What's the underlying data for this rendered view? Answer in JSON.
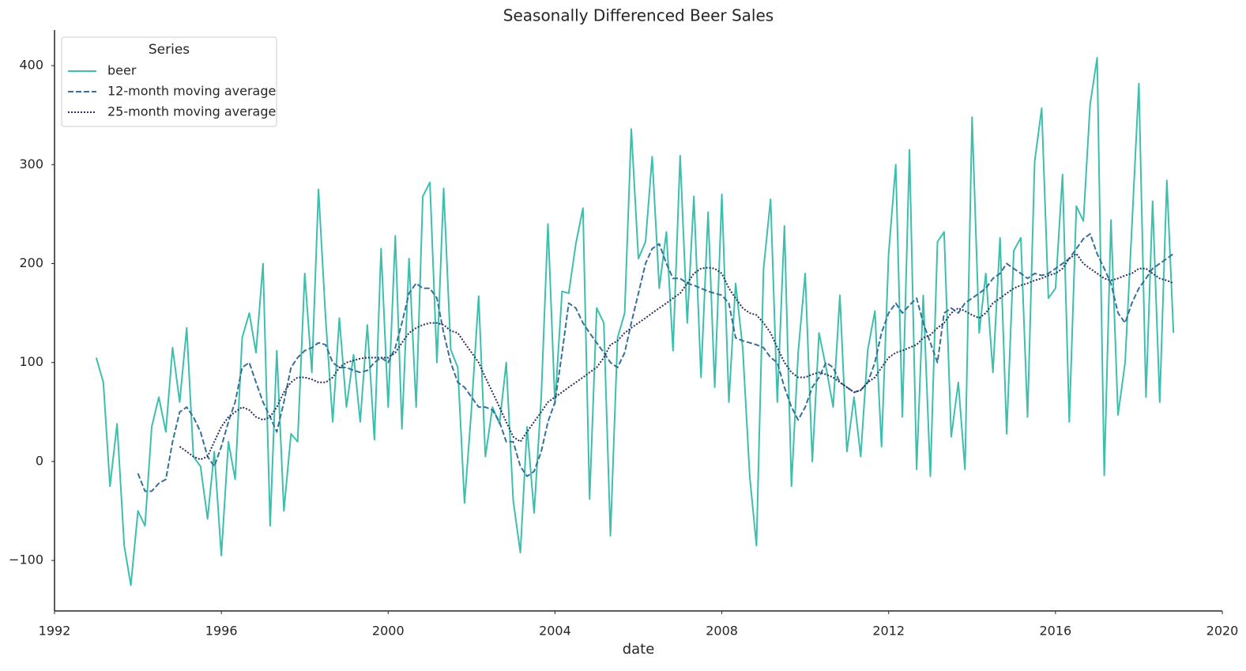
{
  "chart_data": {
    "type": "line",
    "title": "Seasonally Differenced Beer Sales",
    "xlabel": "date",
    "legend_title": "Series",
    "legend": "upper left",
    "grid": false,
    "xlim": [
      1992,
      2020
    ],
    "xticks": [
      1992,
      1996,
      2000,
      2004,
      2008,
      2012,
      2016,
      2020
    ],
    "ylim": [
      -151,
      436
    ],
    "yticks": [
      {
        "value": -100,
        "label": "−100"
      },
      0,
      100,
      200,
      300,
      400
    ],
    "x": [
      1993,
      1993.17,
      1993.33,
      1993.5,
      1993.67,
      1993.83,
      1994,
      1994.17,
      1994.33,
      1994.5,
      1994.67,
      1994.83,
      1995,
      1995.17,
      1995.33,
      1995.5,
      1995.67,
      1995.83,
      1996,
      1996.17,
      1996.33,
      1996.5,
      1996.67,
      1996.83,
      1997,
      1997.17,
      1997.33,
      1997.5,
      1997.67,
      1997.83,
      1998,
      1998.17,
      1998.33,
      1998.5,
      1998.67,
      1998.83,
      1999,
      1999.17,
      1999.33,
      1999.5,
      1999.67,
      1999.83,
      2000,
      2000.17,
      2000.33,
      2000.5,
      2000.67,
      2000.83,
      2001,
      2001.17,
      2001.33,
      2001.5,
      2001.67,
      2001.83,
      2002,
      2002.17,
      2002.33,
      2002.5,
      2002.67,
      2002.83,
      2003,
      2003.17,
      2003.33,
      2003.5,
      2003.67,
      2003.83,
      2004,
      2004.17,
      2004.33,
      2004.5,
      2004.67,
      2004.83,
      2005,
      2005.17,
      2005.33,
      2005.5,
      2005.67,
      2005.83,
      2006,
      2006.17,
      2006.33,
      2006.5,
      2006.67,
      2006.83,
      2007,
      2007.17,
      2007.33,
      2007.5,
      2007.67,
      2007.83,
      2008,
      2008.17,
      2008.33,
      2008.5,
      2008.67,
      2008.83,
      2009,
      2009.17,
      2009.33,
      2009.5,
      2009.67,
      2009.83,
      2010,
      2010.17,
      2010.33,
      2010.5,
      2010.67,
      2010.83,
      2011,
      2011.17,
      2011.33,
      2011.5,
      2011.67,
      2011.83,
      2012,
      2012.17,
      2012.33,
      2012.5,
      2012.67,
      2012.83,
      2013,
      2013.17,
      2013.33,
      2013.5,
      2013.67,
      2013.83,
      2014,
      2014.17,
      2014.33,
      2014.5,
      2014.67,
      2014.83,
      2015,
      2015.17,
      2015.33,
      2015.5,
      2015.67,
      2015.83,
      2016,
      2016.17,
      2016.33,
      2016.5,
      2016.67,
      2016.83,
      2017,
      2017.17,
      2017.33,
      2017.5,
      2017.67,
      2017.83,
      2018,
      2018.17,
      2018.33,
      2018.5,
      2018.67,
      2018.83
    ],
    "series": [
      {
        "name": "beer",
        "color": "#3dbfae",
        "linestyle": "solid",
        "values": [
          105,
          80,
          -25,
          38,
          -85,
          -125,
          -50,
          -65,
          35,
          65,
          30,
          115,
          60,
          135,
          5,
          -5,
          -58,
          10,
          -95,
          20,
          -18,
          125,
          150,
          110,
          200,
          -65,
          112,
          -50,
          28,
          20,
          190,
          90,
          275,
          145,
          40,
          145,
          55,
          108,
          40,
          138,
          22,
          215,
          55,
          228,
          33,
          205,
          55,
          268,
          282,
          100,
          276,
          113,
          95,
          -42,
          55,
          167,
          5,
          55,
          38,
          100,
          -40,
          -92,
          35,
          -52,
          65,
          240,
          58,
          172,
          170,
          220,
          256,
          -38,
          155,
          140,
          -75,
          125,
          150,
          336,
          205,
          222,
          308,
          175,
          232,
          112,
          309,
          140,
          268,
          85,
          252,
          75,
          270,
          60,
          180,
          115,
          -15,
          -85,
          195,
          265,
          60,
          238,
          -25,
          110,
          190,
          0,
          130,
          95,
          55,
          168,
          10,
          65,
          5,
          113,
          152,
          15,
          210,
          300,
          45,
          315,
          -8,
          168,
          -15,
          222,
          232,
          25,
          80,
          -8,
          348,
          130,
          190,
          90,
          226,
          28,
          213,
          226,
          45,
          303,
          357,
          165,
          175,
          290,
          40,
          258,
          243,
          361,
          408,
          -14,
          244,
          47,
          100,
          236,
          382,
          65,
          263,
          60,
          284,
          130
        ]
      },
      {
        "name": "12-month moving average",
        "color": "#35709a",
        "linestyle": "dashed",
        "values": [
          null,
          null,
          null,
          null,
          null,
          null,
          -12,
          -30,
          -30,
          -22,
          -18,
          20,
          50,
          55,
          45,
          30,
          5,
          -5,
          15,
          40,
          60,
          95,
          100,
          80,
          60,
          45,
          30,
          60,
          95,
          105,
          112,
          115,
          120,
          118,
          100,
          95,
          95,
          92,
          90,
          92,
          100,
          105,
          100,
          115,
          140,
          170,
          180,
          175,
          175,
          165,
          130,
          100,
          80,
          75,
          65,
          55,
          55,
          52,
          40,
          20,
          20,
          -5,
          -15,
          -10,
          10,
          40,
          60,
          110,
          160,
          155,
          140,
          130,
          120,
          110,
          100,
          95,
          110,
          140,
          170,
          200,
          215,
          220,
          200,
          185,
          185,
          180,
          178,
          175,
          172,
          170,
          168,
          160,
          125,
          122,
          120,
          118,
          115,
          105,
          100,
          75,
          55,
          42,
          55,
          75,
          85,
          100,
          95,
          80,
          75,
          70,
          72,
          80,
          100,
          130,
          150,
          160,
          150,
          158,
          165,
          140,
          120,
          100,
          150,
          155,
          150,
          160,
          165,
          170,
          175,
          185,
          190,
          200,
          195,
          190,
          185,
          190,
          188,
          190,
          195,
          200,
          205,
          215,
          225,
          230,
          210,
          195,
          180,
          150,
          140,
          160,
          175,
          185,
          195,
          200,
          205,
          210
        ]
      },
      {
        "name": "25-month moving average",
        "color": "#2c2d5c",
        "linestyle": "dotted",
        "values": [
          null,
          null,
          null,
          null,
          null,
          null,
          null,
          null,
          null,
          null,
          null,
          null,
          15,
          10,
          5,
          2,
          5,
          20,
          35,
          45,
          50,
          55,
          52,
          45,
          42,
          45,
          55,
          70,
          80,
          85,
          85,
          83,
          80,
          80,
          85,
          95,
          100,
          102,
          104,
          105,
          105,
          105,
          105,
          110,
          120,
          130,
          135,
          138,
          140,
          140,
          138,
          132,
          130,
          120,
          110,
          100,
          85,
          70,
          55,
          40,
          25,
          20,
          30,
          40,
          50,
          60,
          65,
          70,
          75,
          80,
          85,
          90,
          95,
          105,
          118,
          122,
          130,
          135,
          140,
          145,
          150,
          155,
          160,
          165,
          170,
          180,
          190,
          195,
          196,
          195,
          190,
          175,
          165,
          155,
          150,
          148,
          140,
          130,
          115,
          100,
          90,
          85,
          85,
          88,
          90,
          88,
          85,
          80,
          75,
          70,
          72,
          80,
          85,
          95,
          105,
          110,
          112,
          115,
          118,
          125,
          128,
          135,
          140,
          150,
          155,
          152,
          148,
          145,
          150,
          160,
          165,
          170,
          175,
          178,
          180,
          183,
          185,
          188,
          190,
          195,
          205,
          210,
          200,
          195,
          190,
          185,
          183,
          185,
          188,
          190,
          195,
          195,
          190,
          185,
          183,
          180
        ]
      }
    ]
  }
}
